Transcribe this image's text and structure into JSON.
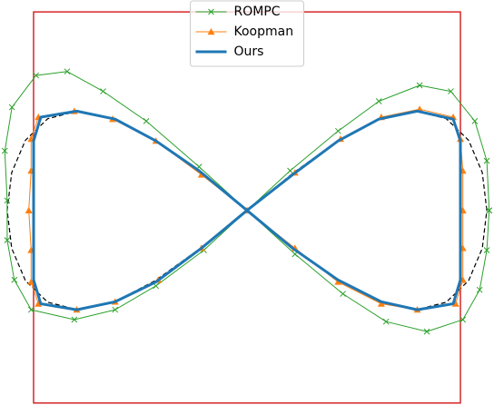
{
  "chart_data": {
    "type": "line",
    "xlim": [
      -1.03,
      1.03
    ],
    "ylim": [
      -0.98,
      1.06
    ],
    "legend_loc": "upper center",
    "box": {
      "x": [
        -0.89,
        0.89
      ],
      "y": [
        -0.97,
        1.0
      ],
      "color": "#d62728"
    },
    "reference": {
      "color": "#000000",
      "linestyle": "dashed",
      "x": [
        1,
        0.981,
        0.924,
        0.831,
        0.707,
        0.556,
        0.383,
        0.195,
        0,
        -0.195,
        -0.383,
        -0.556,
        -0.707,
        -0.831,
        -0.924,
        -0.981,
        -1,
        -0.981,
        -0.924,
        -0.831,
        -0.707,
        -0.556,
        -0.383,
        -0.195,
        0,
        0.195,
        0.383,
        0.556,
        0.707,
        0.831,
        0.924,
        0.981,
        1
      ],
      "values": [
        0,
        0.191,
        0.354,
        0.462,
        0.5,
        0.462,
        0.354,
        0.191,
        0,
        -0.191,
        -0.354,
        -0.462,
        -0.5,
        -0.462,
        -0.354,
        -0.191,
        0,
        0.191,
        0.354,
        0.462,
        0.5,
        0.462,
        0.354,
        0.191,
        0,
        -0.191,
        -0.354,
        -0.462,
        -0.5,
        -0.462,
        -0.354,
        -0.191,
        0
      ]
    },
    "series": [
      {
        "name": "ROMPC",
        "color": "#2ca02c",
        "marker": "x",
        "linewidth": 1,
        "x": [
          1.01,
          1.0,
          0.95,
          0.85,
          0.72,
          0.55,
          0.38,
          0.18,
          0,
          -0.18,
          -0.38,
          -0.55,
          -0.72,
          -0.9,
          -0.97,
          -1.0,
          -1.0,
          -1.01,
          -0.98,
          -0.88,
          -0.75,
          -0.6,
          -0.42,
          -0.2,
          0,
          0.2,
          0.4,
          0.58,
          0.75,
          0.9,
          0.97,
          1.0,
          1.01
        ],
        "values": [
          0,
          0.25,
          0.45,
          0.6,
          0.63,
          0.55,
          0.4,
          0.2,
          0,
          -0.2,
          -0.38,
          -0.5,
          -0.55,
          -0.5,
          -0.35,
          -0.15,
          0.05,
          0.3,
          0.52,
          0.68,
          0.7,
          0.6,
          0.45,
          0.22,
          0,
          -0.22,
          -0.42,
          -0.56,
          -0.61,
          -0.55,
          -0.4,
          -0.2,
          0
        ]
      },
      {
        "name": "Koopman",
        "color": "#ff7f0e",
        "marker": "^",
        "linewidth": 1,
        "x": [
          0.9,
          0.9,
          0.89,
          0.86,
          0.72,
          0.56,
          0.39,
          0.2,
          0,
          -0.19,
          -0.37,
          -0.55,
          -0.71,
          -0.87,
          -0.9,
          -0.9,
          -0.91,
          -0.9,
          -0.9,
          -0.87,
          -0.72,
          -0.56,
          -0.38,
          -0.19,
          0,
          0.2,
          0.38,
          0.56,
          0.71,
          0.87,
          0.9,
          0.9,
          0.9
        ],
        "values": [
          0,
          0.2,
          0.36,
          0.47,
          0.51,
          0.47,
          0.36,
          0.19,
          0,
          -0.19,
          -0.35,
          -0.46,
          -0.5,
          -0.47,
          -0.36,
          -0.2,
          0,
          0.2,
          0.36,
          0.47,
          0.5,
          0.46,
          0.35,
          0.18,
          0,
          -0.19,
          -0.36,
          -0.47,
          -0.5,
          -0.47,
          -0.35,
          -0.19,
          0
        ]
      },
      {
        "name": "Ours",
        "color": "#1f77b4",
        "marker": null,
        "linewidth": 3,
        "x": [
          0.89,
          0.89,
          0.89,
          0.86,
          0.71,
          0.55,
          0.38,
          0.19,
          0,
          -0.19,
          -0.38,
          -0.55,
          -0.71,
          -0.86,
          -0.89,
          -0.89,
          -0.89,
          -0.89,
          -0.89,
          -0.86,
          -0.71,
          -0.55,
          -0.38,
          -0.2,
          0,
          0.19,
          0.38,
          0.56,
          0.71,
          0.86,
          0.89,
          0.89,
          0.89
        ],
        "values": [
          0,
          0.19,
          0.35,
          0.46,
          0.5,
          0.46,
          0.35,
          0.18,
          0,
          -0.19,
          -0.36,
          -0.46,
          -0.5,
          -0.47,
          -0.35,
          -0.19,
          0,
          0.19,
          0.35,
          0.47,
          0.5,
          0.46,
          0.35,
          0.2,
          0,
          -0.19,
          -0.35,
          -0.46,
          -0.5,
          -0.47,
          -0.35,
          -0.19,
          0
        ]
      }
    ]
  }
}
